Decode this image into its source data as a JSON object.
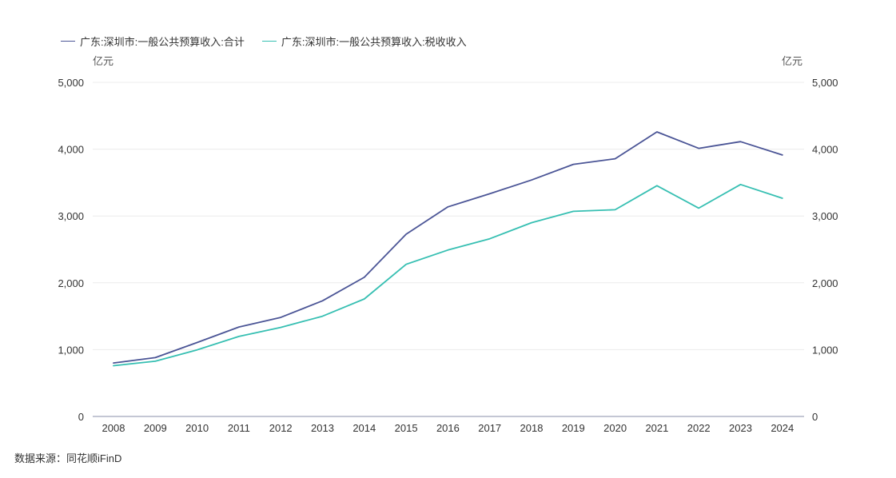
{
  "legend": [
    {
      "label": "广东:深圳市:一般公共预算收入:合计",
      "color": "#4b5596"
    },
    {
      "label": "广东:深圳市:一般公共预算收入:税收收入",
      "color": "#36bfb2"
    }
  ],
  "units": {
    "left": "亿元",
    "right": "亿元"
  },
  "source": "数据来源：同花顺iFinD",
  "chart_data": {
    "type": "line",
    "x": [
      "2008",
      "2009",
      "2010",
      "2011",
      "2012",
      "2013",
      "2014",
      "2015",
      "2016",
      "2017",
      "2018",
      "2019",
      "2020",
      "2021",
      "2022",
      "2023",
      "2024"
    ],
    "series": [
      {
        "name": "广东:深圳市:一般公共预算收入:合计",
        "color": "#4b5596",
        "values": [
          800,
          880,
          1107,
          1339,
          1482,
          1731,
          2083,
          2727,
          3136,
          3332,
          3538,
          3773,
          3857,
          4258,
          4012,
          4113,
          3913
        ]
      },
      {
        "name": "广东:深圳市:一般公共预算收入:税收收入",
        "color": "#36bfb2",
        "values": [
          760,
          826,
          996,
          1197,
          1333,
          1500,
          1758,
          2276,
          2491,
          2659,
          2899,
          3069,
          3093,
          3453,
          3117,
          3471,
          3265
        ]
      }
    ],
    "ylim": [
      0,
      5000
    ],
    "yticks": [
      "0",
      "1,000",
      "2,000",
      "3,000",
      "4,000",
      "5,000"
    ],
    "ytick_values": [
      0,
      1000,
      2000,
      3000,
      4000,
      5000
    ],
    "grid": true,
    "legend_position": "top-left"
  }
}
